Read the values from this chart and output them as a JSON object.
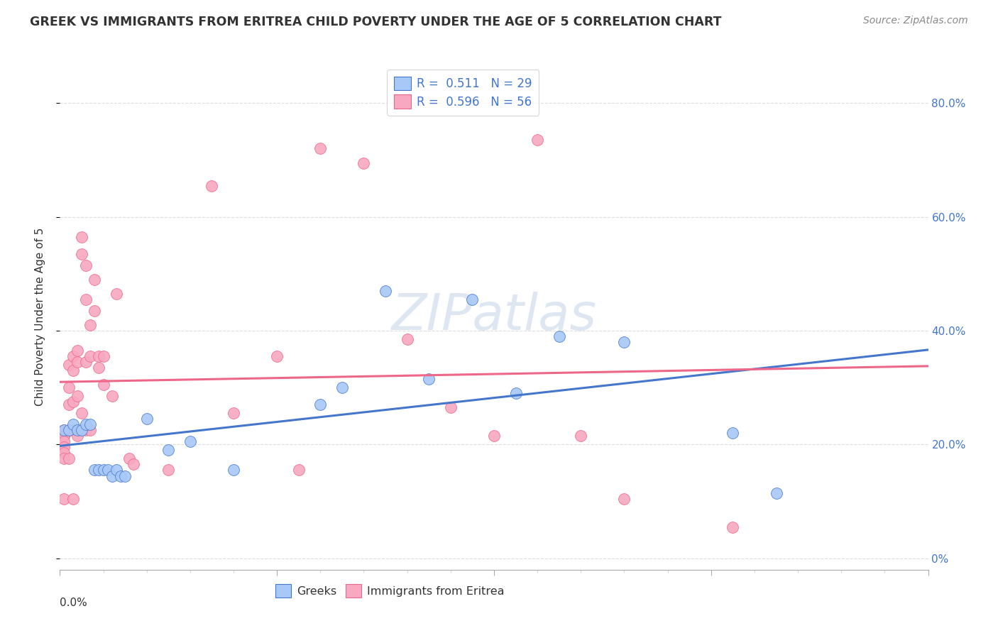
{
  "title": "GREEK VS IMMIGRANTS FROM ERITREA CHILD POVERTY UNDER THE AGE OF 5 CORRELATION CHART",
  "source": "Source: ZipAtlas.com",
  "ylabel": "Child Poverty Under the Age of 5",
  "legend_label1": "Greeks",
  "legend_label2": "Immigrants from Eritrea",
  "r1": "0.511",
  "n1": "29",
  "r2": "0.596",
  "n2": "56",
  "color_greek": "#a8c8f8",
  "color_eritrea": "#f8a8c0",
  "line_color_greek": "#4477cc",
  "line_color_eritrea": "#ee6688",
  "greek_x": [
    0.001,
    0.002,
    0.003,
    0.004,
    0.005,
    0.006,
    0.007,
    0.008,
    0.009,
    0.01,
    0.011,
    0.012,
    0.013,
    0.014,
    0.015,
    0.02,
    0.025,
    0.03,
    0.04,
    0.06,
    0.065,
    0.075,
    0.085,
    0.095,
    0.105,
    0.115,
    0.13,
    0.155,
    0.165
  ],
  "greek_y": [
    0.225,
    0.225,
    0.235,
    0.225,
    0.225,
    0.235,
    0.235,
    0.155,
    0.155,
    0.155,
    0.155,
    0.145,
    0.155,
    0.145,
    0.145,
    0.245,
    0.19,
    0.205,
    0.155,
    0.27,
    0.3,
    0.47,
    0.315,
    0.455,
    0.29,
    0.39,
    0.38,
    0.22,
    0.115
  ],
  "eritrea_x": [
    0.001,
    0.001,
    0.001,
    0.001,
    0.001,
    0.001,
    0.001,
    0.001,
    0.002,
    0.002,
    0.002,
    0.002,
    0.002,
    0.003,
    0.003,
    0.003,
    0.003,
    0.003,
    0.004,
    0.004,
    0.004,
    0.004,
    0.005,
    0.005,
    0.005,
    0.006,
    0.006,
    0.006,
    0.006,
    0.007,
    0.007,
    0.007,
    0.008,
    0.008,
    0.009,
    0.009,
    0.01,
    0.01,
    0.012,
    0.013,
    0.016,
    0.017,
    0.025,
    0.035,
    0.04,
    0.05,
    0.055,
    0.06,
    0.07,
    0.08,
    0.09,
    0.1,
    0.11,
    0.12,
    0.13,
    0.155
  ],
  "eritrea_y": [
    0.225,
    0.215,
    0.215,
    0.205,
    0.195,
    0.185,
    0.175,
    0.105,
    0.34,
    0.3,
    0.27,
    0.225,
    0.175,
    0.355,
    0.33,
    0.275,
    0.225,
    0.105,
    0.365,
    0.345,
    0.285,
    0.215,
    0.565,
    0.535,
    0.255,
    0.515,
    0.455,
    0.345,
    0.225,
    0.41,
    0.355,
    0.225,
    0.49,
    0.435,
    0.355,
    0.335,
    0.355,
    0.305,
    0.285,
    0.465,
    0.175,
    0.165,
    0.155,
    0.655,
    0.255,
    0.355,
    0.155,
    0.72,
    0.695,
    0.385,
    0.265,
    0.215,
    0.735,
    0.215,
    0.105,
    0.055
  ],
  "xlim": [
    0.0,
    0.2
  ],
  "ylim": [
    -0.02,
    0.87
  ],
  "yticks": [
    0.0,
    0.2,
    0.4,
    0.6,
    0.8
  ],
  "ytick_labels": [
    "0%",
    "20.0%",
    "40.0%",
    "60.0%",
    "80.0%"
  ],
  "watermark": "ZIPatlas",
  "watermark_color": "#c8d8e8"
}
